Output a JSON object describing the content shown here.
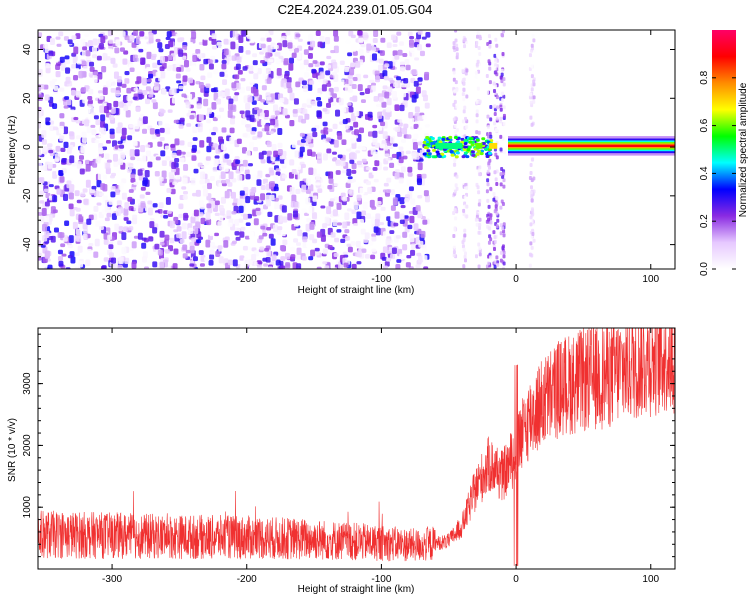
{
  "title": "C2E4.2024.239.01.05.G04",
  "chart_data": [
    {
      "type": "heatmap",
      "xlabel": "Height of straight line (km)",
      "ylabel": "Frequency (Hz)",
      "xlim": [
        -355,
        118
      ],
      "ylim": [
        -50,
        48
      ],
      "x_ticks": [
        -300,
        -200,
        -100,
        0,
        100
      ],
      "y_ticks": [
        -40,
        -20,
        0,
        20,
        40
      ],
      "colorbar": {
        "label": "Normalized spectral amplitude",
        "range": [
          0,
          1
        ],
        "ticks": [
          0.0,
          0.2,
          0.4,
          0.6,
          0.8
        ],
        "colors": [
          "#ffffff",
          "#e6c8ff",
          "#8a2be2",
          "#0000ff",
          "#00ffff",
          "#00ff00",
          "#ffff00",
          "#ff8c00",
          "#ff0000",
          "#ff0066"
        ]
      },
      "noise_region": {
        "x": [
          -355,
          -65
        ],
        "amplitude": 0.12
      },
      "signal_line": {
        "x": [
          -6,
          118
        ],
        "frequency": 0.5,
        "peak_amplitude": 0.9
      }
    },
    {
      "type": "line",
      "xlabel": "Height of straight line (km)",
      "ylabel": "SNR (10 * v/v)",
      "xlim": [
        -355,
        118
      ],
      "ylim": [
        0,
        3900
      ],
      "x_ticks": [
        -300,
        -200,
        -100,
        0,
        100
      ],
      "y_ticks": [
        1000,
        2000,
        3000
      ],
      "color": "#f03030",
      "trend": {
        "x": [
          -355,
          -300,
          -250,
          -200,
          -150,
          -100,
          -70,
          -50,
          -40,
          -30,
          -20,
          -10,
          0,
          10,
          20,
          30,
          40,
          50,
          60,
          70,
          80,
          90,
          100,
          110,
          118
        ],
        "y": [
          560,
          540,
          520,
          510,
          480,
          420,
          380,
          450,
          700,
          1300,
          1700,
          1500,
          1900,
          2450,
          2700,
          2900,
          3000,
          3050,
          3100,
          3150,
          3250,
          3350,
          3400,
          3450,
          3450
        ]
      }
    }
  ]
}
